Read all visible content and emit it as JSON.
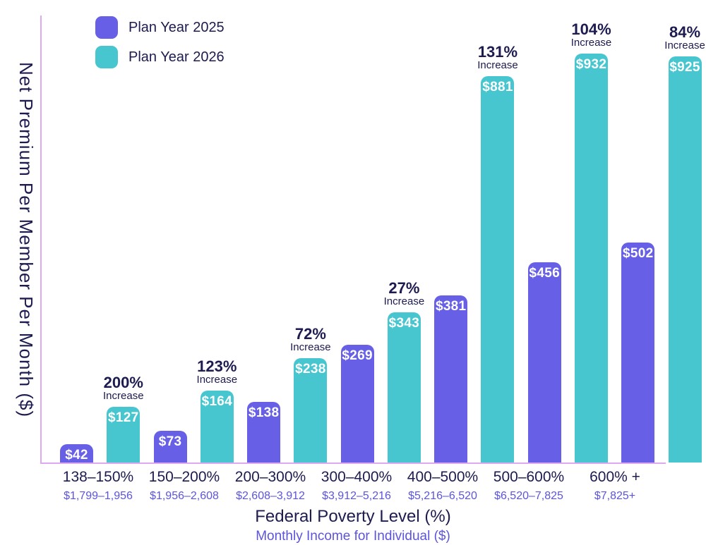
{
  "chart_data": {
    "type": "bar",
    "title": "",
    "y_axis_label": "Net Premium Per Member Per Month ($)",
    "x_axis_title": "Federal Poverty Level (%)",
    "x_axis_subtitle": "Monthly Income for Individual ($)",
    "legend_position": "top-left",
    "grid": false,
    "ylim": [
      0,
      932
    ],
    "legend": [
      {
        "name": "Plan Year 2025",
        "color": "#675FE6"
      },
      {
        "name": "Plan Year 2026",
        "color": "#47C6CF"
      }
    ],
    "categories": [
      "138–150%",
      "150–200%",
      "200–300%",
      "300–400%",
      "400–500%",
      "500–600%",
      "600% +"
    ],
    "income_ranges": [
      "$1,799–1,956",
      "$1,956–2,608",
      "$2,608–3,912",
      "$3,912–5,216",
      "$5,216–6,520",
      "$6,520–7,825",
      "$7,825+"
    ],
    "series": [
      {
        "name": "Plan Year 2025",
        "color": "#675FE6",
        "values": [
          42,
          73,
          138,
          269,
          381,
          456,
          502
        ]
      },
      {
        "name": "Plan Year 2026",
        "color": "#47C6CF",
        "values": [
          127,
          164,
          238,
          343,
          881,
          932,
          925
        ]
      }
    ],
    "value_label_prefix": "$",
    "increase_labels": [
      "200%",
      "123%",
      "72%",
      "27%",
      "131%",
      "104%",
      "84%"
    ],
    "increase_word": "Increase"
  },
  "colors": {
    "plan_2025": "#675FE6",
    "plan_2026": "#47C6CF",
    "axis_line": "#DEA9F0",
    "navy_text": "#1D1B4F",
    "purple_text": "#5C55DC",
    "value_text": "#FFFFFF",
    "background": "#FFFFFF"
  }
}
